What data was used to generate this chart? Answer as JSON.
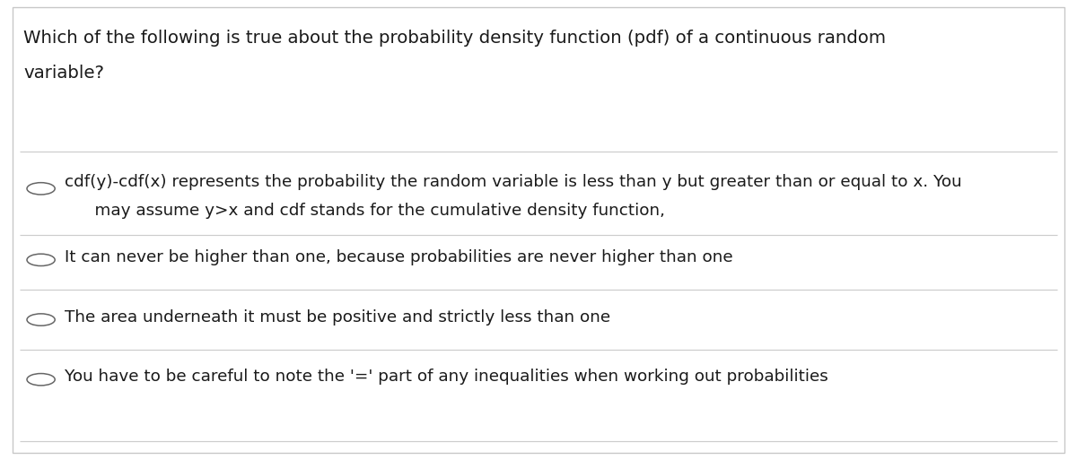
{
  "background_color": "#ffffff",
  "border_color": "#c8c8c8",
  "question_line1": "Which of the following is true about the probability density function (pdf) of a continuous random",
  "question_line2": "variable?",
  "options": [
    {
      "line1": "cdf(y)-cdf(x) represents the probability the random variable is less than y but greater than or equal to x. You",
      "line2": "    may assume y>x and cdf stands for the cumulative density function,"
    },
    {
      "line1": "It can never be higher than one, because probabilities are never higher than one",
      "line2": null
    },
    {
      "line1": "The area underneath it must be positive and strictly less than one",
      "line2": null
    },
    {
      "line1": "You have to be careful to note the '=' part of any inequalities when working out probabilities",
      "line2": null
    }
  ],
  "question_fontsize": 14.2,
  "option_fontsize": 13.2,
  "text_color": "#1a1a1a",
  "circle_color": "#666666",
  "line_color": "#cccccc",
  "fig_width": 12.0,
  "fig_height": 5.13,
  "dpi": 100
}
